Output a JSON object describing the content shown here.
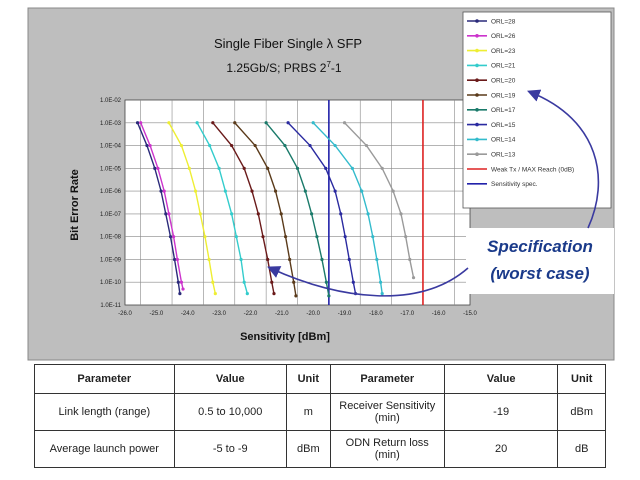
{
  "chart_data": {
    "type": "line",
    "title": "Single Fiber Single λ SFP",
    "subtitle_main": "1.25Gb/S; PRBS 2",
    "subtitle_sup": "7",
    "subtitle_tail": "-1",
    "xlabel": "Sensitivity [dBm]",
    "ylabel": "Bit Error Rate",
    "xlim": [
      -26,
      -15
    ],
    "x_ticks": [
      "-26.0",
      "-25.0",
      "-24.0",
      "-23.0",
      "-22.0",
      "-21.0",
      "-20.0",
      "-19.0",
      "-18.0",
      "-17.0",
      "-16.0",
      "-15.0"
    ],
    "y_ticks": [
      "1.0E-02",
      "1.0E-03",
      "1.0E-04",
      "1.0E-05",
      "1.0E-06",
      "1.0E-07",
      "1.0E-08",
      "1.0E-09",
      "1.0E-10",
      "1.0E-11"
    ],
    "ylim_exp": [
      -11,
      -2
    ],
    "x_offset": 0.5,
    "grid": true,
    "legend_position": "right",
    "series": [
      {
        "name": "ORL=28",
        "color": "#2a2a7a",
        "points": [
          [
            -25.6,
            -3
          ],
          [
            -25.3,
            -4
          ],
          [
            -25.05,
            -5
          ],
          [
            -24.85,
            -6
          ],
          [
            -24.7,
            -7
          ],
          [
            -24.55,
            -8
          ],
          [
            -24.42,
            -9
          ],
          [
            -24.3,
            -10
          ],
          [
            -24.25,
            -10.5
          ]
        ]
      },
      {
        "name": "ORL=26",
        "color": "#cc33cc",
        "points": [
          [
            -25.5,
            -3
          ],
          [
            -25.2,
            -4
          ],
          [
            -24.95,
            -5
          ],
          [
            -24.75,
            -6
          ],
          [
            -24.6,
            -7
          ],
          [
            -24.45,
            -8
          ],
          [
            -24.33,
            -9
          ],
          [
            -24.2,
            -10
          ],
          [
            -24.15,
            -10.3
          ]
        ]
      },
      {
        "name": "ORL=23",
        "color": "#eeee33",
        "points": [
          [
            -24.6,
            -3
          ],
          [
            -24.2,
            -4
          ],
          [
            -23.95,
            -5
          ],
          [
            -23.75,
            -6
          ],
          [
            -23.6,
            -7
          ],
          [
            -23.45,
            -8
          ],
          [
            -23.32,
            -9
          ],
          [
            -23.2,
            -10
          ],
          [
            -23.12,
            -10.5
          ]
        ]
      },
      {
        "name": "ORL=21",
        "color": "#33cccc",
        "points": [
          [
            -23.7,
            -3
          ],
          [
            -23.3,
            -4
          ],
          [
            -23.0,
            -5
          ],
          [
            -22.8,
            -6
          ],
          [
            -22.6,
            -7
          ],
          [
            -22.45,
            -8
          ],
          [
            -22.3,
            -9
          ],
          [
            -22.2,
            -10
          ],
          [
            -22.1,
            -10.5
          ]
        ]
      },
      {
        "name": "ORL=20",
        "color": "#6a1a1a",
        "points": [
          [
            -23.2,
            -3
          ],
          [
            -22.6,
            -4
          ],
          [
            -22.2,
            -5
          ],
          [
            -21.95,
            -6
          ],
          [
            -21.75,
            -7
          ],
          [
            -21.6,
            -8
          ],
          [
            -21.45,
            -9
          ],
          [
            -21.32,
            -10
          ],
          [
            -21.25,
            -10.5
          ]
        ]
      },
      {
        "name": "ORL=19",
        "color": "#5a3a1a",
        "points": [
          [
            -22.5,
            -3
          ],
          [
            -21.85,
            -4
          ],
          [
            -21.45,
            -5
          ],
          [
            -21.2,
            -6
          ],
          [
            -21.02,
            -7
          ],
          [
            -20.88,
            -8
          ],
          [
            -20.75,
            -9
          ],
          [
            -20.62,
            -10
          ],
          [
            -20.55,
            -10.6
          ]
        ]
      },
      {
        "name": "ORL=17",
        "color": "#1a7a6a",
        "points": [
          [
            -21.5,
            -3
          ],
          [
            -20.9,
            -4
          ],
          [
            -20.5,
            -5
          ],
          [
            -20.25,
            -6
          ],
          [
            -20.05,
            -7
          ],
          [
            -19.88,
            -8
          ],
          [
            -19.72,
            -9
          ],
          [
            -19.58,
            -10
          ],
          [
            -19.5,
            -10.6
          ]
        ]
      },
      {
        "name": "ORL=15",
        "color": "#2a2aa0",
        "points": [
          [
            -20.8,
            -3
          ],
          [
            -20.1,
            -4
          ],
          [
            -19.6,
            -5
          ],
          [
            -19.3,
            -6
          ],
          [
            -19.12,
            -7
          ],
          [
            -18.98,
            -8
          ],
          [
            -18.85,
            -9
          ],
          [
            -18.72,
            -10
          ],
          [
            -18.65,
            -10.5
          ]
        ]
      },
      {
        "name": "ORL=14",
        "color": "#33bbcc",
        "points": [
          [
            -20.0,
            -3
          ],
          [
            -19.3,
            -4
          ],
          [
            -18.75,
            -5
          ],
          [
            -18.45,
            -6
          ],
          [
            -18.25,
            -7
          ],
          [
            -18.1,
            -8
          ],
          [
            -17.97,
            -9
          ],
          [
            -17.85,
            -10
          ],
          [
            -17.8,
            -10.5
          ]
        ]
      },
      {
        "name": "ORL=13",
        "color": "#9a9a9a",
        "points": [
          [
            -19.0,
            -3
          ],
          [
            -18.3,
            -4
          ],
          [
            -17.8,
            -5
          ],
          [
            -17.45,
            -6
          ],
          [
            -17.2,
            -7
          ],
          [
            -17.05,
            -8
          ],
          [
            -16.92,
            -9
          ],
          [
            -16.8,
            -9.8
          ]
        ]
      }
    ],
    "reference_lines": [
      {
        "name": "Weak Tx / MAX Reach (0dB)",
        "color": "#dd2222",
        "x": -16.5
      },
      {
        "name": "Sensitivity spec.",
        "color": "#2222aa",
        "x": -19.5
      }
    ],
    "annotation": {
      "line1": "Specification",
      "line2": "(worst case)"
    }
  },
  "table": {
    "headers": [
      "Parameter",
      "Value",
      "Unit",
      "Parameter",
      "Value",
      "Unit"
    ],
    "rows": [
      [
        "Link length (range)",
        "0.5  to  10,000",
        "m",
        "Receiver Sensitivity (min)",
        "-19",
        "dBm"
      ],
      [
        "Average launch power",
        "-5 to -9",
        "dBm",
        "ODN Return loss (min)",
        "20",
        "dB"
      ]
    ]
  },
  "colors": {
    "panel_bg": "#bebebe",
    "plot_bg": "#ffffff",
    "grid": "#888888",
    "arrow": "#3a3aa0",
    "annotation": "#1a3a8a"
  }
}
